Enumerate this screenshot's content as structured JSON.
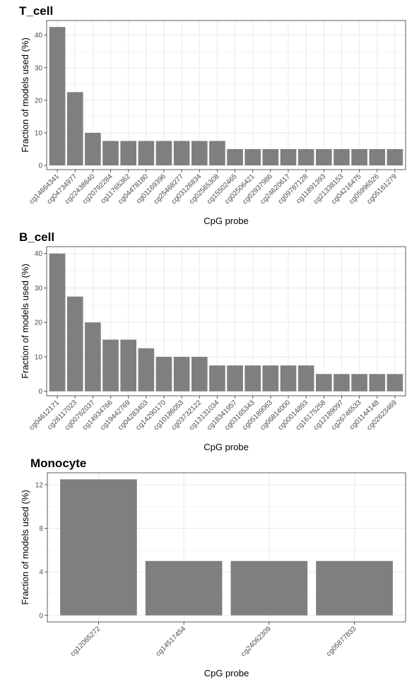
{
  "chart_data": [
    {
      "type": "bar",
      "title": "T_cell",
      "xlabel": "CpG probe",
      "ylabel": "Fraction of models used (%)",
      "ylim": [
        -1.3,
        44.5
      ],
      "yticks": [
        0,
        10,
        20,
        30,
        40
      ],
      "grid": true,
      "categories": [
        "cg14664341",
        "cg04734977",
        "cg22438640",
        "cg20792284",
        "cg11765362",
        "cg04478180",
        "cg01169396",
        "cg25468277",
        "cg03126834",
        "cg02565308",
        "cg15502465",
        "cg02506421",
        "cg02937986",
        "cg24620617",
        "cg09787128",
        "cg11891393",
        "cg21338153",
        "cg04216475",
        "cg05996526",
        "cg05161279"
      ],
      "values": [
        42.5,
        22.5,
        10,
        7.5,
        7.5,
        7.5,
        7.5,
        7.5,
        7.5,
        7.5,
        5,
        5,
        5,
        5,
        5,
        5,
        5,
        5,
        5,
        5
      ]
    },
    {
      "type": "bar",
      "title": "B_cell",
      "xlabel": "CpG probe",
      "ylabel": "Fraction of models used (%)",
      "ylim": [
        -1.3,
        42.0
      ],
      "yticks": [
        0,
        10,
        20,
        30,
        40
      ],
      "grid": true,
      "categories": [
        "cg04612171",
        "cg26117023",
        "cg00762037",
        "cg14934766",
        "cg19442769",
        "cg04283403",
        "cg14290170",
        "cg10186053",
        "cg03732122",
        "cg13131034",
        "cg18341957",
        "cg03165343",
        "cg05189063",
        "cg06814000",
        "cg00014893",
        "cg16175258",
        "cg12189097",
        "cg26746533",
        "cg01144148",
        "cg02623469"
      ],
      "values": [
        40,
        27.5,
        20,
        15,
        15,
        12.5,
        10,
        10,
        10,
        7.5,
        7.5,
        7.5,
        7.5,
        7.5,
        7.5,
        5,
        5,
        5,
        5,
        5
      ]
    },
    {
      "type": "bar",
      "title": "Monocyte",
      "xlabel": "CpG probe",
      "ylabel": "Fraction of models used (%)",
      "ylim": [
        -0.6,
        13.1
      ],
      "yticks": [
        0,
        4,
        8,
        12
      ],
      "grid": true,
      "categories": [
        "cg12065272",
        "cg14517454",
        "cg24062309",
        "cg05877833"
      ],
      "values": [
        12.5,
        5,
        5,
        5
      ]
    }
  ],
  "colors": {
    "bar": "#7f7f7f",
    "grid": "#ebebeb",
    "panel_border": "#333333"
  }
}
